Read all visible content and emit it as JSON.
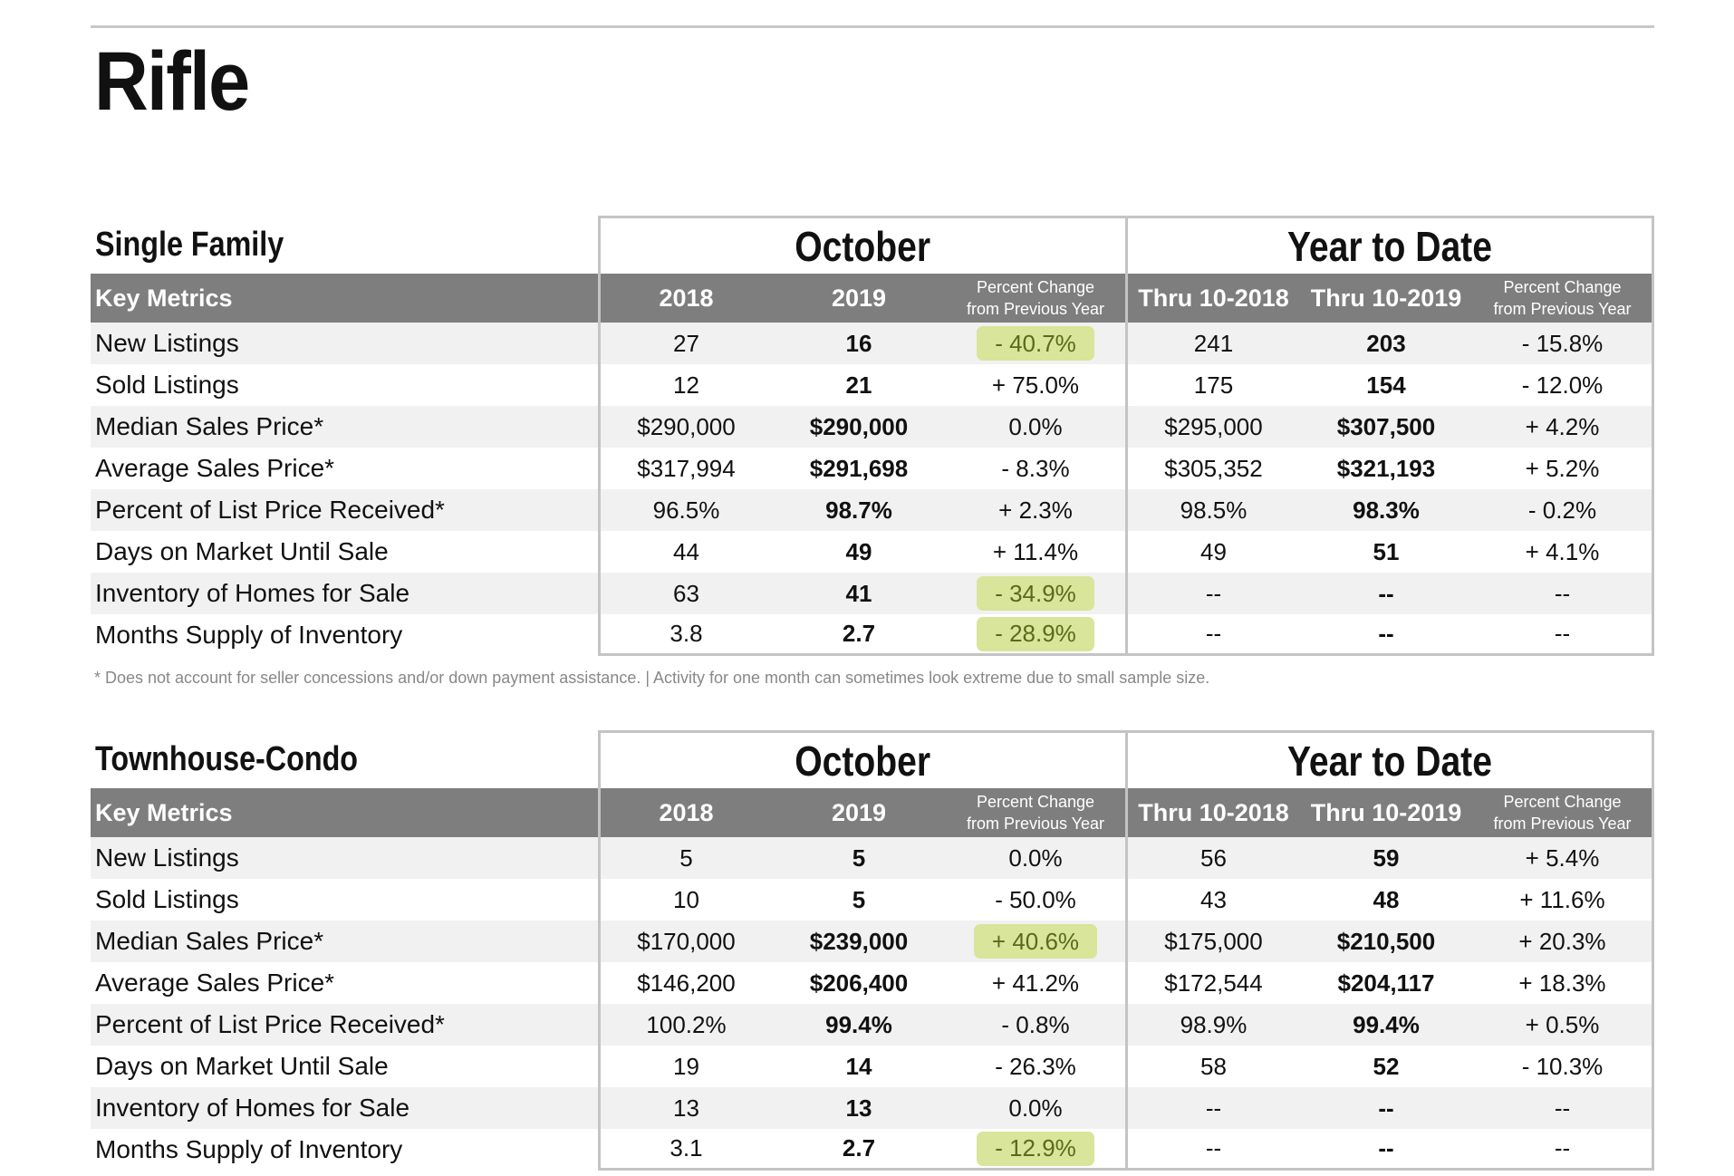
{
  "page_title": "Rifle",
  "footnote": "* Does not account for seller concessions and/or down payment assistance.  |  Activity for one month can sometimes look extreme due to small sample size.",
  "highlight_color": "#d8e59a",
  "header_color": "#7e7e7e",
  "sections": [
    {
      "title": "Single Family",
      "group_labels": [
        "October",
        "Year to Date"
      ],
      "columns": {
        "metric": "Key Metrics",
        "y1": "2018",
        "y2": "2019",
        "pc_line1": "Percent Change",
        "pc_line2": "from Previous Year",
        "ytd1": "Thru 10-2018",
        "ytd2": "Thru 10-2019",
        "pc2_line1": "Percent Change",
        "pc2_line2": "from Previous Year"
      },
      "rows": [
        {
          "metric": "New Listings",
          "v2018": "27",
          "v2019": "16",
          "pct": "- 40.7%",
          "ytd2018": "241",
          "ytd2019": "203",
          "ytd_pct": "- 15.8%"
        },
        {
          "metric": "Sold Listings",
          "v2018": "12",
          "v2019": "21",
          "pct": "+ 75.0%",
          "ytd2018": "175",
          "ytd2019": "154",
          "ytd_pct": "- 12.0%"
        },
        {
          "metric": "Median Sales Price*",
          "v2018": "$290,000",
          "v2019": "$290,000",
          "pct": "0.0%",
          "ytd2018": "$295,000",
          "ytd2019": "$307,500",
          "ytd_pct": "+ 4.2%"
        },
        {
          "metric": "Average Sales Price*",
          "v2018": "$317,994",
          "v2019": "$291,698",
          "pct": "- 8.3%",
          "ytd2018": "$305,352",
          "ytd2019": "$321,193",
          "ytd_pct": "+ 5.2%"
        },
        {
          "metric": "Percent of List Price Received*",
          "v2018": "96.5%",
          "v2019": "98.7%",
          "pct": "+ 2.3%",
          "ytd2018": "98.5%",
          "ytd2019": "98.3%",
          "ytd_pct": "- 0.2%"
        },
        {
          "metric": "Days on Market Until Sale",
          "v2018": "44",
          "v2019": "49",
          "pct": "+ 11.4%",
          "ytd2018": "49",
          "ytd2019": "51",
          "ytd_pct": "+ 4.1%"
        },
        {
          "metric": "Inventory of Homes for Sale",
          "v2018": "63",
          "v2019": "41",
          "pct": "- 34.9%",
          "ytd2018": "--",
          "ytd2019": "--",
          "ytd_pct": "--"
        },
        {
          "metric": "Months Supply of Inventory",
          "v2018": "3.8",
          "v2019": "2.7",
          "pct": "- 28.9%",
          "ytd2018": "--",
          "ytd2019": "--",
          "ytd_pct": "--"
        }
      ]
    },
    {
      "title": "Townhouse-Condo",
      "group_labels": [
        "October",
        "Year to Date"
      ],
      "columns": {
        "metric": "Key Metrics",
        "y1": "2018",
        "y2": "2019",
        "pc_line1": "Percent Change",
        "pc_line2": "from Previous Year",
        "ytd1": "Thru 10-2018",
        "ytd2": "Thru 10-2019",
        "pc2_line1": "Percent Change",
        "pc2_line2": "from Previous Year"
      },
      "rows": [
        {
          "metric": "New Listings",
          "v2018": "5",
          "v2019": "5",
          "pct": "0.0%",
          "ytd2018": "56",
          "ytd2019": "59",
          "ytd_pct": "+ 5.4%"
        },
        {
          "metric": "Sold Listings",
          "v2018": "10",
          "v2019": "5",
          "pct": "- 50.0%",
          "ytd2018": "43",
          "ytd2019": "48",
          "ytd_pct": "+ 11.6%"
        },
        {
          "metric": "Median Sales Price*",
          "v2018": "$170,000",
          "v2019": "$239,000",
          "pct": "+ 40.6%",
          "ytd2018": "$175,000",
          "ytd2019": "$210,500",
          "ytd_pct": "+ 20.3%"
        },
        {
          "metric": "Average Sales Price*",
          "v2018": "$146,200",
          "v2019": "$206,400",
          "pct": "+ 41.2%",
          "ytd2018": "$172,544",
          "ytd2019": "$204,117",
          "ytd_pct": "+ 18.3%"
        },
        {
          "metric": "Percent of List Price Received*",
          "v2018": "100.2%",
          "v2019": "99.4%",
          "pct": "- 0.8%",
          "ytd2018": "98.9%",
          "ytd2019": "99.4%",
          "ytd_pct": "+ 0.5%"
        },
        {
          "metric": "Days on Market Until Sale",
          "v2018": "19",
          "v2019": "14",
          "pct": "- 26.3%",
          "ytd2018": "58",
          "ytd2019": "52",
          "ytd_pct": "- 10.3%"
        },
        {
          "metric": "Inventory of Homes for Sale",
          "v2018": "13",
          "v2019": "13",
          "pct": "0.0%",
          "ytd2018": "--",
          "ytd2019": "--",
          "ytd_pct": "--"
        },
        {
          "metric": "Months Supply of Inventory",
          "v2018": "3.1",
          "v2019": "2.7",
          "pct": "- 12.9%",
          "ytd2018": "--",
          "ytd2019": "--",
          "ytd_pct": "--"
        }
      ]
    }
  ]
}
